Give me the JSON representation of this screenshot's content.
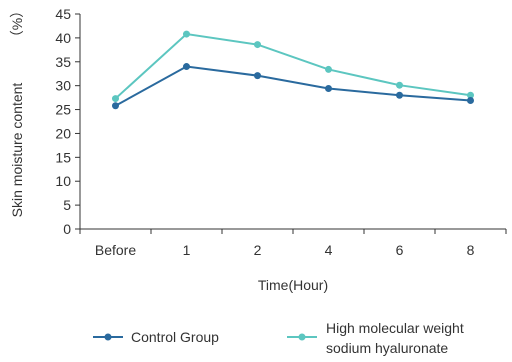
{
  "chart_data": {
    "type": "line",
    "categories": [
      "Before",
      "1",
      "2",
      "4",
      "6",
      "8"
    ],
    "series": [
      {
        "name": "Control Group",
        "values": [
          25.8,
          34.0,
          32.1,
          29.4,
          28.0,
          26.9
        ],
        "color": "#2a6a9e"
      },
      {
        "name_lines": [
          "High molecular weight",
          "sodium hyaluronate"
        ],
        "values": [
          27.3,
          40.8,
          38.6,
          33.4,
          30.1,
          28.0
        ],
        "color": "#5cc6c0"
      }
    ],
    "xlabel": "Time(Hour)",
    "ylabel": "Skin moisture content",
    "yunit": "（%）",
    "ylim": [
      0,
      45
    ],
    "yticks": [
      0,
      5,
      10,
      15,
      20,
      25,
      30,
      35,
      40,
      45
    ],
    "grid": false,
    "legend": "bottom"
  }
}
